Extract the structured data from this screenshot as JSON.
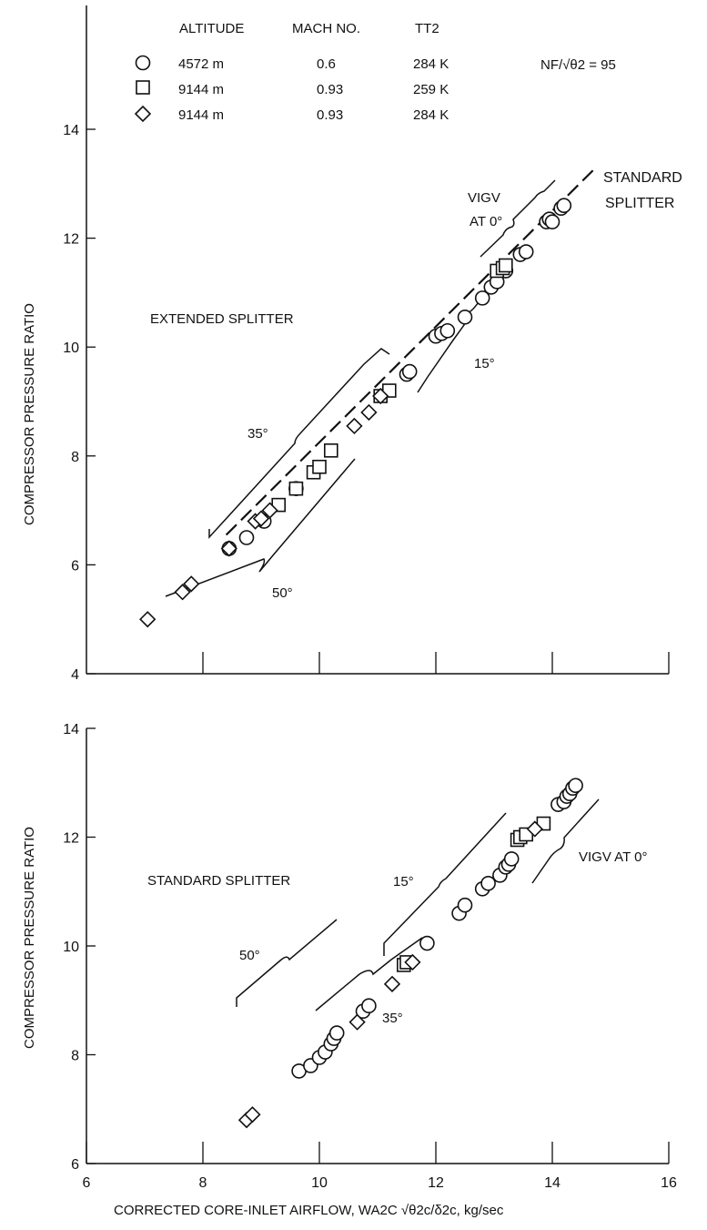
{
  "legend": {
    "headers": [
      "ALTITUDE",
      "MACH NO.",
      "TT2"
    ],
    "rows": [
      {
        "marker": "circle",
        "altitude": "4572 m",
        "mach": "0.6",
        "tt2": "284 K"
      },
      {
        "marker": "square",
        "altitude": "9144 m",
        "mach": "0.93",
        "tt2": "259 K"
      },
      {
        "marker": "diamond",
        "altitude": "9144 m",
        "mach": "0.93",
        "tt2": "284 K"
      }
    ],
    "speed_note": "NF/√θ2 = 95"
  },
  "chart_data": [
    {
      "type": "scatter",
      "ylabel": "COMPRESSOR PRESSURE RATIO",
      "xlabel": "",
      "xlim": [
        6,
        16
      ],
      "ylim": [
        4,
        14
      ],
      "y_ticks": [
        4,
        6,
        8,
        10,
        12,
        14
      ],
      "x_ticks": [
        8,
        10,
        12,
        14,
        16
      ],
      "x_tick_labels_shown": false,
      "label": "EXTENDED SPLITTER",
      "annotations": [
        {
          "text": "STANDARD SPLITTER",
          "lines": [
            "STANDARD",
            "SPLITTER"
          ]
        },
        {
          "text": "VIGV AT 0°",
          "lines": [
            "VIGV",
            "AT 0°"
          ]
        },
        {
          "text": "15°"
        },
        {
          "text": "35°"
        },
        {
          "text": "50°"
        }
      ],
      "series": [
        {
          "marker": "circle",
          "x": [
            8.45,
            8.75,
            9.05,
            9.6,
            11.5,
            11.55,
            12.0,
            12.1,
            12.2,
            12.5,
            12.8,
            12.95,
            13.05,
            13.2,
            13.45,
            13.55,
            13.9,
            13.95,
            14.0,
            14.15,
            14.2
          ],
          "y": [
            6.3,
            6.5,
            6.8,
            7.4,
            9.5,
            9.55,
            10.2,
            10.25,
            10.3,
            10.55,
            10.9,
            11.1,
            11.2,
            11.4,
            11.7,
            11.75,
            12.3,
            12.35,
            12.3,
            12.55,
            12.6
          ]
        },
        {
          "marker": "square",
          "x": [
            9.3,
            9.6,
            9.9,
            10.0,
            10.2,
            11.05,
            11.2,
            13.05,
            13.15,
            13.2
          ],
          "y": [
            7.1,
            7.4,
            7.7,
            7.8,
            8.1,
            9.1,
            9.2,
            11.4,
            11.45,
            11.5
          ]
        },
        {
          "marker": "diamond",
          "x": [
            7.05,
            7.65,
            7.8,
            8.45,
            8.9,
            9.0,
            9.15,
            10.6,
            10.85,
            11.05
          ],
          "y": [
            5.0,
            5.5,
            5.65,
            6.3,
            6.8,
            6.85,
            7.0,
            8.55,
            8.8,
            9.1
          ]
        }
      ],
      "trend_line": {
        "x": [
          8.4,
          14.75
        ],
        "y": [
          6.55,
          13.3
        ]
      }
    },
    {
      "type": "scatter",
      "ylabel": "COMPRESSOR PRESSURE RATIO",
      "xlabel": "CORRECTED CORE-INLET AIRFLOW, WA2C √θ2c/δ2c, kg/sec",
      "xlim": [
        6,
        16
      ],
      "ylim": [
        6,
        14
      ],
      "y_ticks": [
        6,
        8,
        10,
        12,
        14
      ],
      "x_ticks": [
        6,
        8,
        10,
        12,
        14,
        16
      ],
      "label": "STANDARD SPLITTER",
      "annotations": [
        {
          "text": "VIGV AT 0°"
        },
        {
          "text": "15°"
        },
        {
          "text": "35°"
        },
        {
          "text": "50°"
        }
      ],
      "series": [
        {
          "marker": "circle",
          "x": [
            9.65,
            9.85,
            10.0,
            10.1,
            10.2,
            10.25,
            10.3,
            10.75,
            10.85,
            11.85,
            12.4,
            12.5,
            12.8,
            12.9,
            13.1,
            13.2,
            13.25,
            13.3,
            14.1,
            14.2,
            14.25,
            14.3,
            14.35,
            14.4
          ],
          "y": [
            7.7,
            7.8,
            7.95,
            8.05,
            8.2,
            8.3,
            8.4,
            8.8,
            8.9,
            10.05,
            10.6,
            10.75,
            11.05,
            11.15,
            11.3,
            11.45,
            11.5,
            11.6,
            12.6,
            12.65,
            12.75,
            12.8,
            12.9,
            12.95
          ]
        },
        {
          "marker": "square",
          "x": [
            11.45,
            11.5,
            13.4,
            13.45,
            13.55,
            13.85
          ],
          "y": [
            9.65,
            9.7,
            11.95,
            12.0,
            12.05,
            12.25
          ]
        },
        {
          "marker": "diamond",
          "x": [
            8.75,
            8.85,
            10.65,
            11.25,
            11.6,
            13.7
          ],
          "y": [
            6.8,
            6.9,
            8.6,
            9.3,
            9.7,
            12.15
          ]
        }
      ]
    }
  ]
}
